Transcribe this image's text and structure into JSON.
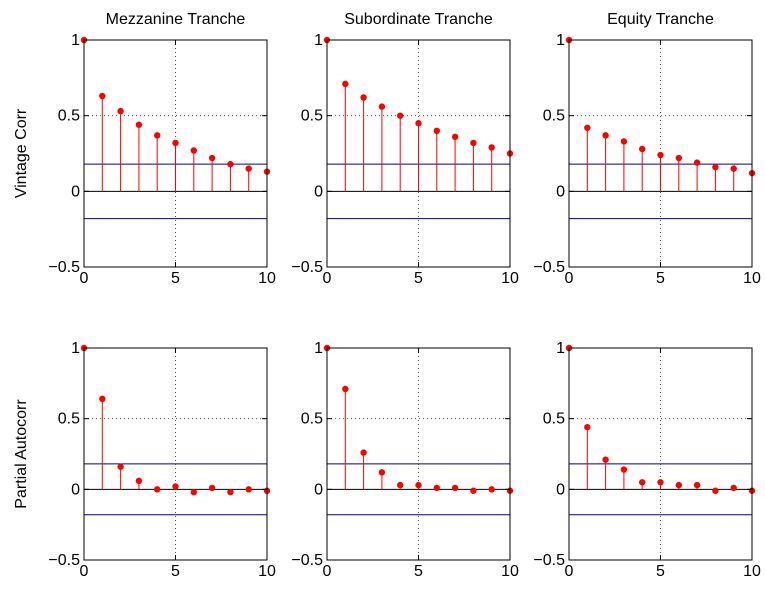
{
  "chart_data": [
    {
      "type": "stem",
      "title": "Mezzanine Tranche",
      "ylabel": "Vintage Corr",
      "x": [
        0,
        1,
        2,
        3,
        4,
        5,
        6,
        7,
        8,
        9,
        10
      ],
      "values": [
        1.0,
        0.63,
        0.53,
        0.44,
        0.37,
        0.32,
        0.27,
        0.22,
        0.18,
        0.15,
        0.13
      ],
      "confidence_bounds": [
        0.18,
        -0.18
      ],
      "xlim": [
        0,
        10
      ],
      "ylim": [
        -0.5,
        1
      ],
      "xticks": [
        "0",
        "5",
        "10"
      ],
      "yticks": [
        "−0.5",
        "0",
        "0.5",
        "1"
      ],
      "grid": "dotted"
    },
    {
      "type": "stem",
      "title": "Subordinate Tranche",
      "ylabel": "",
      "x": [
        0,
        1,
        2,
        3,
        4,
        5,
        6,
        7,
        8,
        9,
        10
      ],
      "values": [
        1.0,
        0.71,
        0.62,
        0.56,
        0.5,
        0.45,
        0.4,
        0.36,
        0.32,
        0.29,
        0.25
      ],
      "confidence_bounds": [
        0.18,
        -0.18
      ],
      "xlim": [
        0,
        10
      ],
      "ylim": [
        -0.5,
        1
      ],
      "xticks": [
        "0",
        "5",
        "10"
      ],
      "yticks": [
        "−0.5",
        "0",
        "0.5",
        "1"
      ],
      "grid": "dotted"
    },
    {
      "type": "stem",
      "title": "Equity Tranche",
      "ylabel": "",
      "x": [
        0,
        1,
        2,
        3,
        4,
        5,
        6,
        7,
        8,
        9,
        10
      ],
      "values": [
        1.0,
        0.42,
        0.37,
        0.33,
        0.28,
        0.24,
        0.22,
        0.19,
        0.16,
        0.15,
        0.12
      ],
      "confidence_bounds": [
        0.18,
        -0.18
      ],
      "xlim": [
        0,
        10
      ],
      "ylim": [
        -0.5,
        1
      ],
      "xticks": [
        "0",
        "5",
        "10"
      ],
      "yticks": [
        "−0.5",
        "0",
        "0.5",
        "1"
      ],
      "grid": "dotted"
    },
    {
      "type": "stem",
      "title": "",
      "ylabel": "Partial Autocorr",
      "x": [
        0,
        1,
        2,
        3,
        4,
        5,
        6,
        7,
        8,
        9,
        10
      ],
      "values": [
        1.0,
        0.64,
        0.16,
        0.06,
        0.0,
        0.02,
        -0.02,
        0.01,
        -0.02,
        0.0,
        -0.01
      ],
      "confidence_bounds": [
        0.18,
        -0.18
      ],
      "xlim": [
        0,
        10
      ],
      "ylim": [
        -0.5,
        1
      ],
      "xticks": [
        "0",
        "5",
        "10"
      ],
      "yticks": [
        "−0.5",
        "0",
        "0.5",
        "1"
      ],
      "grid": "dotted"
    },
    {
      "type": "stem",
      "title": "",
      "ylabel": "",
      "x": [
        0,
        1,
        2,
        3,
        4,
        5,
        6,
        7,
        8,
        9,
        10
      ],
      "values": [
        1.0,
        0.71,
        0.26,
        0.12,
        0.03,
        0.03,
        0.01,
        0.01,
        -0.01,
        0.0,
        -0.01
      ],
      "confidence_bounds": [
        0.18,
        -0.18
      ],
      "xlim": [
        0,
        10
      ],
      "ylim": [
        -0.5,
        1
      ],
      "xticks": [
        "0",
        "5",
        "10"
      ],
      "yticks": [
        "−0.5",
        "0",
        "0.5",
        "1"
      ],
      "grid": "dotted"
    },
    {
      "type": "stem",
      "title": "",
      "ylabel": "",
      "x": [
        0,
        1,
        2,
        3,
        4,
        5,
        6,
        7,
        8,
        9,
        10
      ],
      "values": [
        1.0,
        0.44,
        0.21,
        0.14,
        0.05,
        0.05,
        0.03,
        0.03,
        -0.01,
        0.01,
        -0.01
      ],
      "confidence_bounds": [
        0.18,
        -0.18
      ],
      "xlim": [
        0,
        10
      ],
      "ylim": [
        -0.5,
        1
      ],
      "xticks": [
        "0",
        "5",
        "10"
      ],
      "yticks": [
        "−0.5",
        "0",
        "0.5",
        "1"
      ],
      "grid": "dotted"
    }
  ],
  "colors": {
    "stem": "#ff0000",
    "bound": "#00008b",
    "axis": "#000000",
    "grid": "#555555"
  }
}
